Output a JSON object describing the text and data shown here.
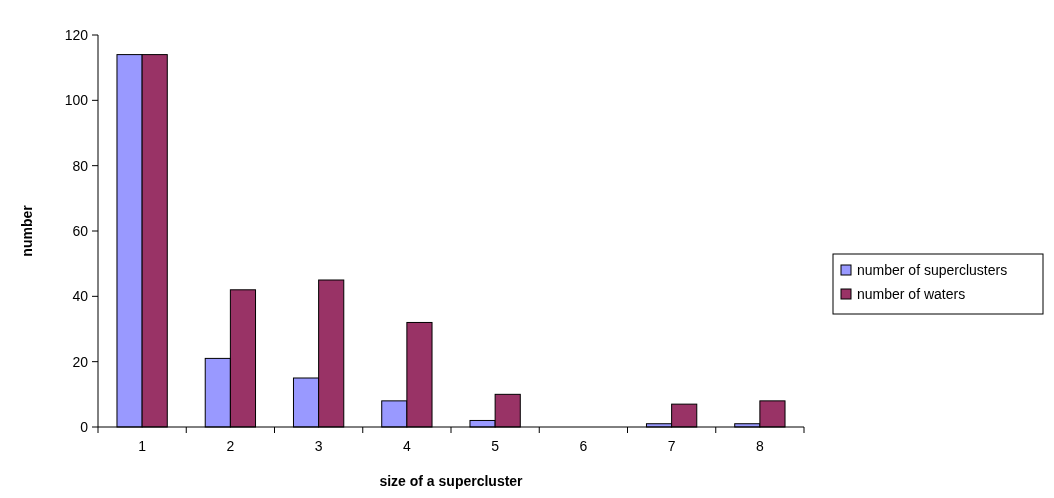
{
  "chart_data": {
    "type": "bar",
    "xlabel": "size of a supercluster",
    "ylabel": "number",
    "categories": [
      "1",
      "2",
      "3",
      "4",
      "5",
      "6",
      "7",
      "8"
    ],
    "series": [
      {
        "name": "number of superclusters",
        "color": "#9999ff",
        "values": [
          114,
          21,
          15,
          8,
          2,
          0,
          1,
          1
        ]
      },
      {
        "name": "number of waters",
        "color": "#993366",
        "values": [
          114,
          42,
          45,
          32,
          10,
          0,
          7,
          8
        ]
      }
    ],
    "ylim": [
      0,
      120
    ],
    "yticks": [
      0,
      20,
      40,
      60,
      80,
      100,
      120
    ],
    "legend": "right"
  }
}
